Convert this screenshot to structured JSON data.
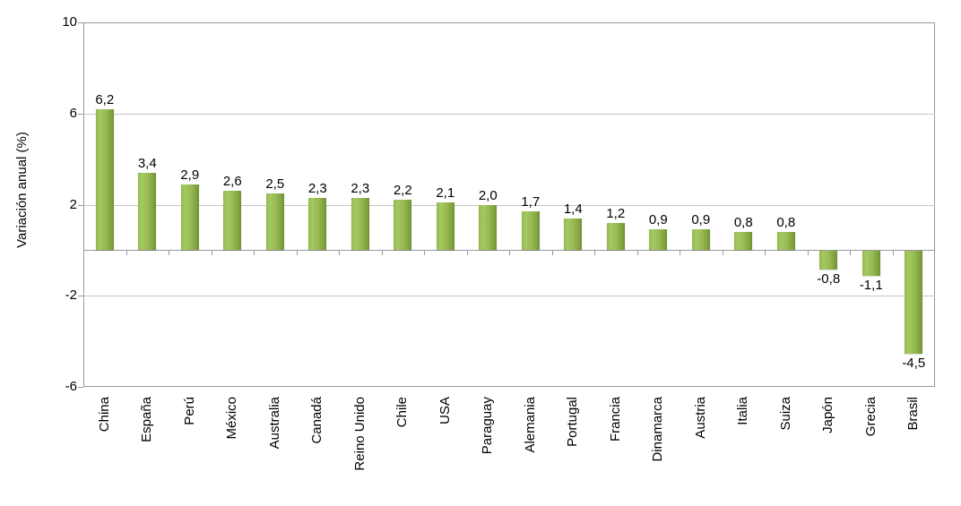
{
  "chart_data": {
    "type": "bar",
    "title": "",
    "xlabel": "",
    "ylabel": "Variación anual (%)",
    "ylim": [
      -6,
      10
    ],
    "yticks": [
      10,
      6,
      2,
      -2,
      -6
    ],
    "gridlines_at": [
      6,
      2,
      -2
    ],
    "zero_baseline": true,
    "grid": true,
    "legend_position": "none",
    "decimal_separator": ",",
    "categories": [
      "China",
      "España",
      "Perú",
      "México",
      "Australia",
      "Canadá",
      "Reino Unido",
      "Chile",
      "USA",
      "Paraguay",
      "Alemania",
      "Portugal",
      "Francia",
      "Dinamarca",
      "Austria",
      "Italia",
      "Suiza",
      "Japón",
      "Grecia",
      "Brasil"
    ],
    "values": [
      6.2,
      3.4,
      2.9,
      2.6,
      2.5,
      2.3,
      2.3,
      2.2,
      2.1,
      2.0,
      1.7,
      1.4,
      1.2,
      0.9,
      0.9,
      0.8,
      0.8,
      -0.8,
      -1.1,
      -4.5
    ],
    "value_labels": [
      "6,2",
      "3,4",
      "2,9",
      "2,6",
      "2,5",
      "2,3",
      "2,3",
      "2,2",
      "2,1",
      "2,0",
      "1,7",
      "1,4",
      "1,2",
      "0,9",
      "0,9",
      "0,8",
      "0,8",
      "-0,8",
      "-1,1",
      "-4,5"
    ]
  },
  "colors": {
    "bar_light": "#a5c962",
    "bar_mid": "#97ba52",
    "bar_dark": "#6f8e34",
    "gridline": "#c6c6c6",
    "axis": "#9a9a9a",
    "text": "#000000",
    "background": "#ffffff"
  }
}
